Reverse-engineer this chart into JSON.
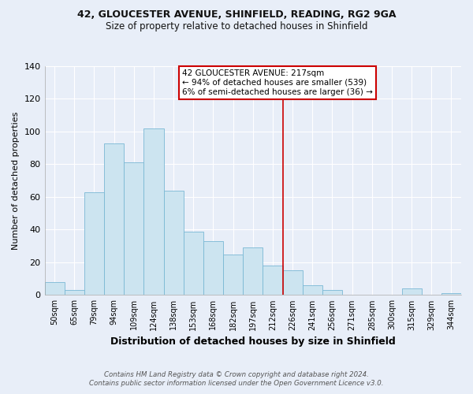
{
  "title1": "42, GLOUCESTER AVENUE, SHINFIELD, READING, RG2 9GA",
  "title2": "Size of property relative to detached houses in Shinfield",
  "xlabel": "Distribution of detached houses by size in Shinfield",
  "ylabel": "Number of detached properties",
  "footer1": "Contains HM Land Registry data © Crown copyright and database right 2024.",
  "footer2": "Contains public sector information licensed under the Open Government Licence v3.0.",
  "bin_labels": [
    "50sqm",
    "65sqm",
    "79sqm",
    "94sqm",
    "109sqm",
    "124sqm",
    "138sqm",
    "153sqm",
    "168sqm",
    "182sqm",
    "197sqm",
    "212sqm",
    "226sqm",
    "241sqm",
    "256sqm",
    "271sqm",
    "285sqm",
    "300sqm",
    "315sqm",
    "329sqm",
    "344sqm"
  ],
  "bar_heights": [
    8,
    3,
    63,
    93,
    81,
    102,
    64,
    39,
    33,
    25,
    29,
    18,
    15,
    6,
    3,
    0,
    0,
    0,
    4,
    0,
    1
  ],
  "bar_color": "#cce4f0",
  "bar_edge_color": "#7ab8d4",
  "vline_color": "#cc0000",
  "annotation_title": "42 GLOUCESTER AVENUE: 217sqm",
  "annotation_line1": "← 94% of detached houses are smaller (539)",
  "annotation_line2": "6% of semi-detached houses are larger (36) →",
  "ylim": [
    0,
    140
  ],
  "yticks": [
    0,
    20,
    40,
    60,
    80,
    100,
    120,
    140
  ],
  "bg_color": "#e8eef8",
  "grid_color": "#ffffff"
}
